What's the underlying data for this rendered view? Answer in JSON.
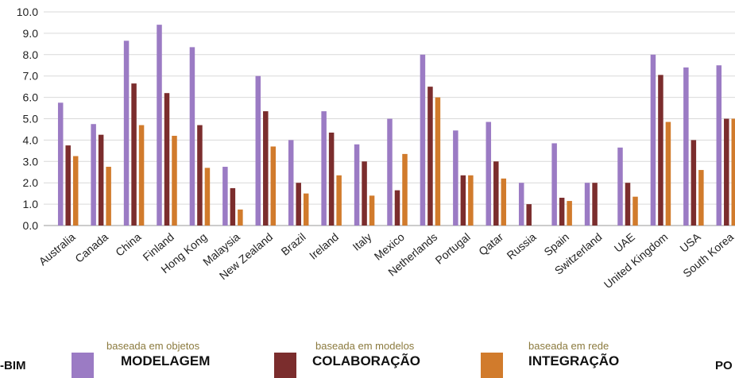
{
  "chart_data": {
    "type": "bar",
    "categories": [
      "Australia",
      "Canada",
      "China",
      "Finland",
      "Hong Kong",
      "Malaysia",
      "New Zealand",
      "Brazil",
      "Ireland",
      "Italy",
      "Mexico",
      "Netherlands",
      "Portugal",
      "Qatar",
      "Russia",
      "Spain",
      "Switzerland",
      "UAE",
      "United Kingdom",
      "USA",
      "South Korea"
    ],
    "series": [
      {
        "name": "MODELAGEM",
        "subtitle": "baseada em objetos",
        "color": "#9b7bc4",
        "values": [
          5.75,
          4.75,
          8.65,
          9.4,
          8.35,
          2.75,
          7.0,
          4.0,
          5.35,
          3.8,
          5.0,
          8.0,
          4.45,
          4.85,
          2.0,
          3.85,
          2.0,
          3.65,
          8.0,
          7.4,
          7.5
        ]
      },
      {
        "name": "COLABORAÇÃO",
        "subtitle": "baseada em modelos",
        "color": "#7b2d2d",
        "values": [
          3.75,
          4.25,
          6.65,
          6.2,
          4.7,
          1.75,
          5.35,
          2.0,
          4.35,
          3.0,
          1.65,
          6.5,
          2.35,
          3.0,
          1.0,
          1.3,
          2.0,
          2.0,
          7.05,
          4.0,
          5.0
        ]
      },
      {
        "name": "INTEGRAÇÃO",
        "subtitle": "baseada em rede",
        "color": "#d17b2c",
        "values": [
          3.25,
          2.75,
          4.7,
          4.2,
          2.7,
          0.75,
          3.7,
          1.5,
          2.35,
          1.4,
          3.35,
          6.0,
          2.35,
          2.2,
          null,
          1.15,
          null,
          1.35,
          4.85,
          2.6,
          5.0
        ]
      }
    ],
    "ylim": [
      0,
      10
    ],
    "yticks": [
      "0.0",
      "1.0",
      "2.0",
      "3.0",
      "4.0",
      "5.0",
      "6.0",
      "7.0",
      "8.0",
      "9.0",
      "10.0"
    ],
    "grid": true,
    "legend": "bottom"
  },
  "edge_labels": {
    "left": "-BIM",
    "right": "PO"
  }
}
